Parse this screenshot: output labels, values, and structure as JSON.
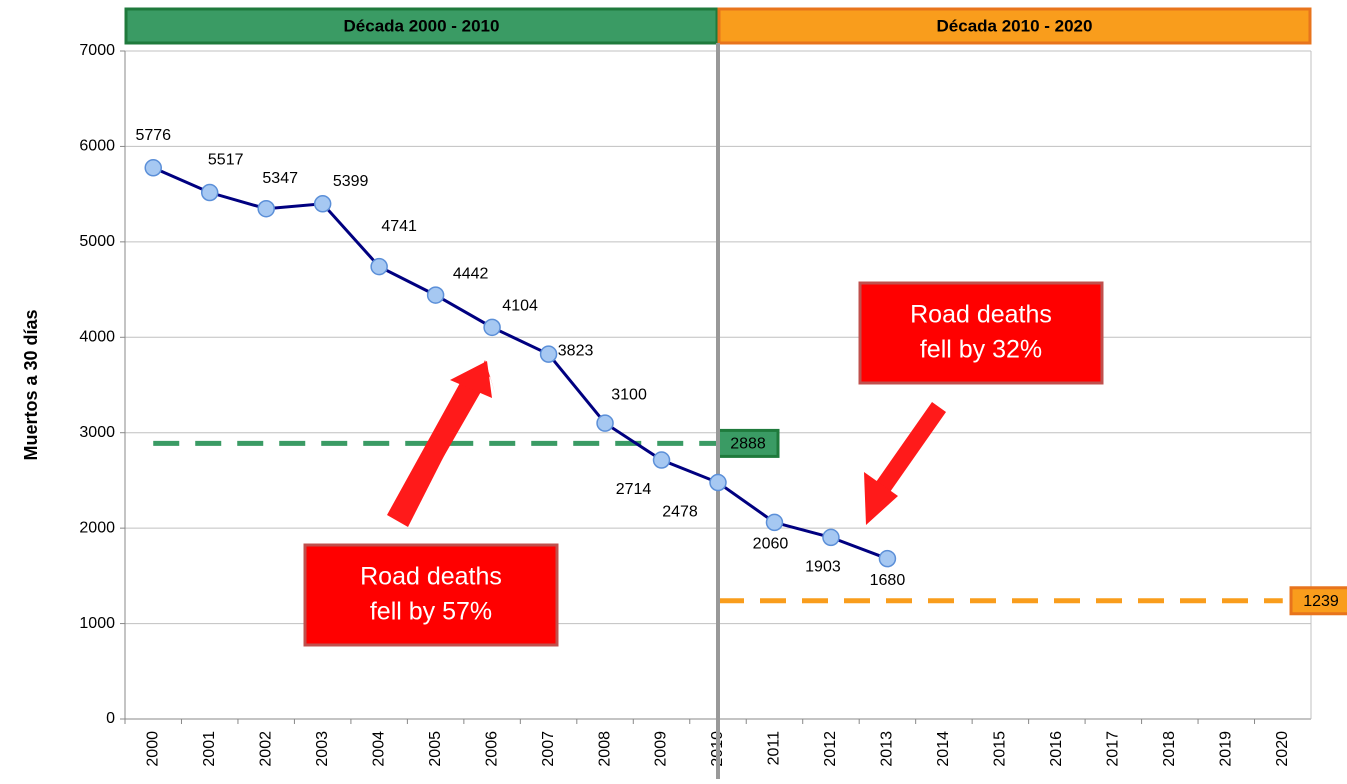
{
  "chart_data": {
    "type": "line",
    "y_axis_label": "Muertos a 30 días",
    "categories": [
      "2000",
      "2001",
      "2002",
      "2003",
      "2004",
      "2005",
      "2006",
      "2007",
      "2008",
      "2009",
      "2010",
      "2011",
      "2012",
      "2013",
      "2014",
      "2015",
      "2016",
      "2017",
      "2018",
      "2019",
      "2020"
    ],
    "series": [
      {
        "name": "Muertos a 30 días",
        "color": "#000080",
        "marker_color": "#a6c8f2",
        "values": [
          5776,
          5517,
          5347,
          5399,
          4741,
          4442,
          4104,
          3823,
          3100,
          2714,
          2478,
          2060,
          1903,
          1680,
          null,
          null,
          null,
          null,
          null,
          null,
          null
        ]
      }
    ],
    "ylim": [
      0,
      7000
    ],
    "yticks": [
      0,
      1000,
      2000,
      3000,
      4000,
      5000,
      6000,
      7000
    ],
    "grid": true,
    "decades": [
      {
        "label": "Década 2000 - 2010",
        "color": "#3a9b64",
        "border": "#1f7a3c",
        "reference": 2888
      },
      {
        "label": "Década 2010 - 2020",
        "color": "#f99d1c",
        "border": "#e8741c",
        "reference": 1239
      }
    ],
    "annotations": [
      {
        "lines": [
          "Road deaths",
          "fell by 57%"
        ]
      },
      {
        "lines": [
          "Road deaths",
          "fell by 32%"
        ]
      }
    ]
  }
}
